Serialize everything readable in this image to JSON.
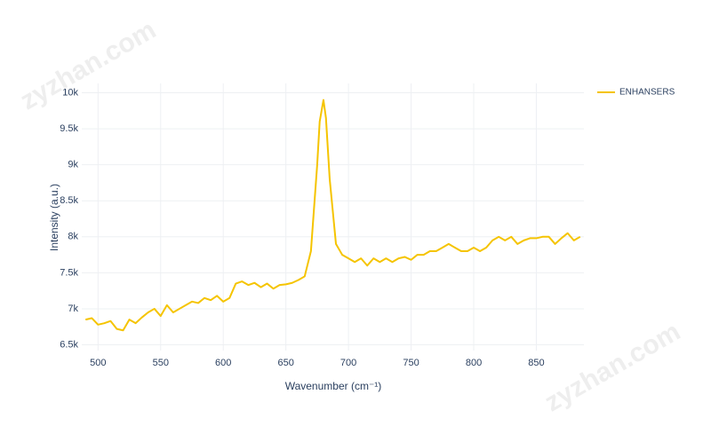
{
  "chart_data": {
    "type": "line",
    "x_label": "Wavenumber (cm⁻¹)",
    "y_label": "Intensity (a.u.)",
    "watermark": "zyzhan.com",
    "x": [
      490,
      495,
      500,
      505,
      510,
      515,
      520,
      525,
      530,
      535,
      540,
      545,
      550,
      555,
      560,
      565,
      570,
      575,
      580,
      585,
      590,
      595,
      600,
      605,
      610,
      615,
      620,
      625,
      630,
      635,
      640,
      645,
      650,
      655,
      660,
      665,
      670,
      675,
      677,
      680,
      682,
      685,
      690,
      695,
      700,
      705,
      710,
      715,
      720,
      725,
      730,
      735,
      740,
      745,
      750,
      755,
      760,
      765,
      770,
      775,
      780,
      785,
      790,
      795,
      800,
      805,
      810,
      815,
      820,
      825,
      830,
      835,
      840,
      845,
      850,
      855,
      860,
      865,
      870,
      875,
      880,
      885
    ],
    "series": [
      {
        "name": "ENHANSERS",
        "color": "#f5c400",
        "values": [
          6850,
          6870,
          6780,
          6800,
          6830,
          6720,
          6700,
          6850,
          6800,
          6880,
          6950,
          7000,
          6900,
          7050,
          6950,
          7000,
          7050,
          7100,
          7080,
          7150,
          7120,
          7180,
          7100,
          7150,
          7350,
          7380,
          7330,
          7360,
          7300,
          7350,
          7280,
          7330,
          7340,
          7360,
          7400,
          7450,
          7800,
          9000,
          9600,
          9900,
          9650,
          8800,
          7900,
          7750,
          7700,
          7650,
          7700,
          7600,
          7700,
          7650,
          7700,
          7650,
          7700,
          7720,
          7680,
          7750,
          7750,
          7800,
          7800,
          7850,
          7900,
          7850,
          7800,
          7800,
          7850,
          7800,
          7850,
          7950,
          8000,
          7950,
          8000,
          7900,
          7950,
          7980,
          7980,
          8000,
          8000,
          7900,
          7980,
          8050,
          7950,
          8000
        ]
      }
    ],
    "xlim": [
      487,
      888
    ],
    "ylim": [
      6420,
      10130
    ],
    "xticks": [
      500,
      550,
      600,
      650,
      700,
      750,
      800,
      850
    ],
    "yticks": [
      {
        "value": 6500,
        "label": "6.5k"
      },
      {
        "value": 7000,
        "label": "7k"
      },
      {
        "value": 7500,
        "label": "7.5k"
      },
      {
        "value": 8000,
        "label": "8k"
      },
      {
        "value": 8500,
        "label": "8.5k"
      },
      {
        "value": 9000,
        "label": "9k"
      },
      {
        "value": 9500,
        "label": "9.5k"
      },
      {
        "value": 10000,
        "label": "10k"
      }
    ],
    "grid": true,
    "legend": "top-right"
  }
}
